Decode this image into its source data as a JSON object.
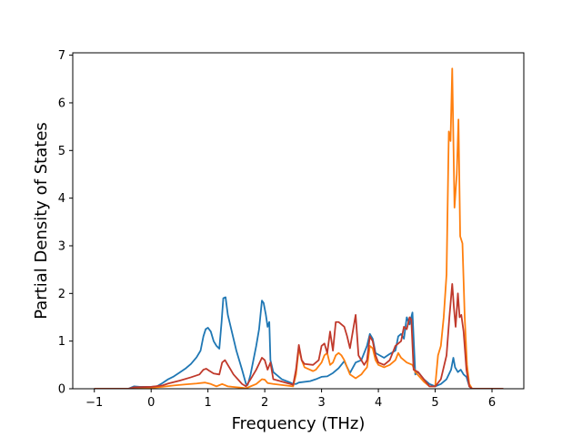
{
  "chart_data": {
    "type": "line",
    "title": "",
    "xlabel": "Frequency (THz)",
    "ylabel": "Partial Density of States",
    "xlim": [
      -1.38,
      6.56
    ],
    "ylim": [
      0,
      7.05
    ],
    "xticks": [
      -1,
      0,
      1,
      2,
      3,
      4,
      5,
      6
    ],
    "yticks": [
      0,
      1,
      2,
      3,
      4,
      5,
      6,
      7
    ],
    "grid": false,
    "legend": "none",
    "series": [
      {
        "color": "#1f77b4",
        "points": [
          [
            -1.0,
            0
          ],
          [
            -0.4,
            0
          ],
          [
            -0.3,
            0.05
          ],
          [
            -0.2,
            0.04
          ],
          [
            0.0,
            0.04
          ],
          [
            0.1,
            0.05
          ],
          [
            0.2,
            0.12
          ],
          [
            0.3,
            0.2
          ],
          [
            0.4,
            0.26
          ],
          [
            0.5,
            0.34
          ],
          [
            0.6,
            0.42
          ],
          [
            0.7,
            0.52
          ],
          [
            0.8,
            0.66
          ],
          [
            0.87,
            0.8
          ],
          [
            0.92,
            1.1
          ],
          [
            0.96,
            1.25
          ],
          [
            1.0,
            1.28
          ],
          [
            1.05,
            1.2
          ],
          [
            1.1,
            1.0
          ],
          [
            1.15,
            0.9
          ],
          [
            1.2,
            0.84
          ],
          [
            1.24,
            1.4
          ],
          [
            1.27,
            1.9
          ],
          [
            1.31,
            1.92
          ],
          [
            1.35,
            1.55
          ],
          [
            1.4,
            1.3
          ],
          [
            1.5,
            0.8
          ],
          [
            1.6,
            0.4
          ],
          [
            1.67,
            0.1
          ],
          [
            1.7,
            0.08
          ],
          [
            1.75,
            0.3
          ],
          [
            1.8,
            0.6
          ],
          [
            1.85,
            0.9
          ],
          [
            1.9,
            1.25
          ],
          [
            1.95,
            1.85
          ],
          [
            1.98,
            1.8
          ],
          [
            2.02,
            1.55
          ],
          [
            2.05,
            1.3
          ],
          [
            2.08,
            1.4
          ],
          [
            2.1,
            0.6
          ],
          [
            2.15,
            0.35
          ],
          [
            2.3,
            0.2
          ],
          [
            2.45,
            0.13
          ],
          [
            2.5,
            0.1
          ],
          [
            2.55,
            0.1
          ],
          [
            2.6,
            0.13
          ],
          [
            2.8,
            0.16
          ],
          [
            2.9,
            0.2
          ],
          [
            3.0,
            0.25
          ],
          [
            3.1,
            0.26
          ],
          [
            3.2,
            0.33
          ],
          [
            3.3,
            0.43
          ],
          [
            3.4,
            0.58
          ],
          [
            3.45,
            0.45
          ],
          [
            3.5,
            0.33
          ],
          [
            3.6,
            0.55
          ],
          [
            3.7,
            0.6
          ],
          [
            3.8,
            0.9
          ],
          [
            3.85,
            1.15
          ],
          [
            3.9,
            1.05
          ],
          [
            3.95,
            0.75
          ],
          [
            4.1,
            0.65
          ],
          [
            4.2,
            0.73
          ],
          [
            4.3,
            0.8
          ],
          [
            4.35,
            1.1
          ],
          [
            4.4,
            1.15
          ],
          [
            4.45,
            1.05
          ],
          [
            4.5,
            1.5
          ],
          [
            4.55,
            1.35
          ],
          [
            4.6,
            1.6
          ],
          [
            4.65,
            0.3
          ],
          [
            4.7,
            0.35
          ],
          [
            4.8,
            0.2
          ],
          [
            4.9,
            0.1
          ],
          [
            5.0,
            0.05
          ],
          [
            5.1,
            0.1
          ],
          [
            5.2,
            0.2
          ],
          [
            5.28,
            0.4
          ],
          [
            5.32,
            0.65
          ],
          [
            5.35,
            0.45
          ],
          [
            5.4,
            0.35
          ],
          [
            5.45,
            0.4
          ],
          [
            5.5,
            0.3
          ],
          [
            5.55,
            0.25
          ],
          [
            5.6,
            0.05
          ],
          [
            5.65,
            0
          ],
          [
            6.2,
            0
          ]
        ]
      },
      {
        "color": "#ff7f0e",
        "points": [
          [
            -1.0,
            0
          ],
          [
            -0.4,
            0
          ],
          [
            -0.3,
            0.02
          ],
          [
            0.0,
            0.02
          ],
          [
            0.2,
            0.04
          ],
          [
            0.4,
            0.07
          ],
          [
            0.6,
            0.09
          ],
          [
            0.8,
            0.11
          ],
          [
            0.95,
            0.13
          ],
          [
            1.05,
            0.1
          ],
          [
            1.15,
            0.05
          ],
          [
            1.25,
            0.1
          ],
          [
            1.35,
            0.05
          ],
          [
            1.6,
            0.02
          ],
          [
            1.67,
            0.01
          ],
          [
            1.75,
            0.05
          ],
          [
            1.85,
            0.1
          ],
          [
            1.95,
            0.2
          ],
          [
            2.0,
            0.19
          ],
          [
            2.05,
            0.12
          ],
          [
            2.15,
            0.1
          ],
          [
            2.5,
            0.05
          ],
          [
            2.55,
            0.3
          ],
          [
            2.6,
            0.85
          ],
          [
            2.65,
            0.6
          ],
          [
            2.7,
            0.45
          ],
          [
            2.85,
            0.37
          ],
          [
            2.9,
            0.4
          ],
          [
            3.0,
            0.55
          ],
          [
            3.05,
            0.7
          ],
          [
            3.1,
            0.75
          ],
          [
            3.15,
            0.5
          ],
          [
            3.2,
            0.55
          ],
          [
            3.25,
            0.7
          ],
          [
            3.3,
            0.75
          ],
          [
            3.35,
            0.7
          ],
          [
            3.4,
            0.6
          ],
          [
            3.5,
            0.3
          ],
          [
            3.6,
            0.22
          ],
          [
            3.7,
            0.3
          ],
          [
            3.75,
            0.38
          ],
          [
            3.8,
            0.45
          ],
          [
            3.85,
            0.9
          ],
          [
            3.9,
            0.85
          ],
          [
            3.95,
            0.6
          ],
          [
            4.0,
            0.5
          ],
          [
            4.1,
            0.45
          ],
          [
            4.2,
            0.5
          ],
          [
            4.3,
            0.6
          ],
          [
            4.35,
            0.75
          ],
          [
            4.4,
            0.65
          ],
          [
            4.5,
            0.55
          ],
          [
            4.6,
            0.5
          ],
          [
            4.65,
            0.35
          ],
          [
            4.8,
            0.15
          ],
          [
            4.9,
            0.05
          ],
          [
            5.0,
            0.05
          ],
          [
            5.05,
            0.7
          ],
          [
            5.1,
            0.9
          ],
          [
            5.15,
            1.5
          ],
          [
            5.2,
            2.4
          ],
          [
            5.24,
            5.4
          ],
          [
            5.27,
            5.2
          ],
          [
            5.3,
            6.72
          ],
          [
            5.34,
            3.8
          ],
          [
            5.38,
            4.5
          ],
          [
            5.41,
            5.65
          ],
          [
            5.44,
            3.2
          ],
          [
            5.48,
            3.05
          ],
          [
            5.52,
            1.5
          ],
          [
            5.56,
            0.5
          ],
          [
            5.6,
            0.1
          ],
          [
            5.65,
            0
          ],
          [
            6.2,
            0
          ]
        ]
      },
      {
        "color": "#c0392b",
        "points": [
          [
            -1.0,
            0
          ],
          [
            -0.4,
            0
          ],
          [
            -0.3,
            0.03
          ],
          [
            0.0,
            0.04
          ],
          [
            0.2,
            0.07
          ],
          [
            0.3,
            0.11
          ],
          [
            0.5,
            0.17
          ],
          [
            0.7,
            0.24
          ],
          [
            0.85,
            0.3
          ],
          [
            0.92,
            0.4
          ],
          [
            0.97,
            0.42
          ],
          [
            1.02,
            0.38
          ],
          [
            1.1,
            0.32
          ],
          [
            1.2,
            0.3
          ],
          [
            1.25,
            0.55
          ],
          [
            1.3,
            0.6
          ],
          [
            1.35,
            0.5
          ],
          [
            1.45,
            0.3
          ],
          [
            1.6,
            0.1
          ],
          [
            1.67,
            0.05
          ],
          [
            1.75,
            0.2
          ],
          [
            1.85,
            0.4
          ],
          [
            1.95,
            0.65
          ],
          [
            2.0,
            0.6
          ],
          [
            2.05,
            0.4
          ],
          [
            2.1,
            0.55
          ],
          [
            2.15,
            0.2
          ],
          [
            2.3,
            0.15
          ],
          [
            2.45,
            0.1
          ],
          [
            2.5,
            0.08
          ],
          [
            2.55,
            0.4
          ],
          [
            2.6,
            0.92
          ],
          [
            2.65,
            0.6
          ],
          [
            2.7,
            0.52
          ],
          [
            2.85,
            0.5
          ],
          [
            2.95,
            0.6
          ],
          [
            3.0,
            0.9
          ],
          [
            3.05,
            0.95
          ],
          [
            3.1,
            0.75
          ],
          [
            3.15,
            1.2
          ],
          [
            3.2,
            0.8
          ],
          [
            3.25,
            1.4
          ],
          [
            3.3,
            1.4
          ],
          [
            3.4,
            1.3
          ],
          [
            3.45,
            1.1
          ],
          [
            3.5,
            0.85
          ],
          [
            3.55,
            1.2
          ],
          [
            3.6,
            1.55
          ],
          [
            3.65,
            0.7
          ],
          [
            3.75,
            0.5
          ],
          [
            3.8,
            0.6
          ],
          [
            3.85,
            1.1
          ],
          [
            3.9,
            1.0
          ],
          [
            3.95,
            0.7
          ],
          [
            4.0,
            0.55
          ],
          [
            4.1,
            0.5
          ],
          [
            4.2,
            0.6
          ],
          [
            4.3,
            0.9
          ],
          [
            4.35,
            0.95
          ],
          [
            4.4,
            1.0
          ],
          [
            4.45,
            1.3
          ],
          [
            4.5,
            1.25
          ],
          [
            4.55,
            1.5
          ],
          [
            4.58,
            1.45
          ],
          [
            4.62,
            0.4
          ],
          [
            4.7,
            0.35
          ],
          [
            4.8,
            0.2
          ],
          [
            4.9,
            0.05
          ],
          [
            5.0,
            0.05
          ],
          [
            5.1,
            0.2
          ],
          [
            5.2,
            0.7
          ],
          [
            5.25,
            1.5
          ],
          [
            5.3,
            2.2
          ],
          [
            5.33,
            1.7
          ],
          [
            5.36,
            1.3
          ],
          [
            5.4,
            2.0
          ],
          [
            5.43,
            1.5
          ],
          [
            5.46,
            1.55
          ],
          [
            5.5,
            1.2
          ],
          [
            5.55,
            0.4
          ],
          [
            5.6,
            0.05
          ],
          [
            5.65,
            0
          ],
          [
            6.2,
            0
          ]
        ]
      }
    ]
  }
}
